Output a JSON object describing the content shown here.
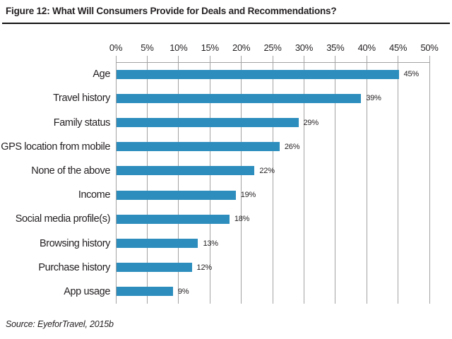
{
  "figure": {
    "title": "Figure 12: What Will Consumers Provide for Deals and Recommendations?",
    "source": "Source: EyeforTravel, 2015b"
  },
  "chart_data": {
    "type": "bar",
    "orientation": "horizontal",
    "title": "Figure 12: What Will Consumers Provide for Deals and Recommendations?",
    "xlabel": "",
    "ylabel": "",
    "categories": [
      "Age",
      "Travel history",
      "Family status",
      "GPS location from mobile",
      "None of the above",
      "Income",
      "Social media profile(s)",
      "Browsing history",
      "Purchase history",
      "App usage"
    ],
    "values": [
      45,
      39,
      29,
      26,
      22,
      19,
      18,
      13,
      12,
      9
    ],
    "value_labels": [
      "45%",
      "39%",
      "29%",
      "26%",
      "22%",
      "19%",
      "18%",
      "13%",
      "12%",
      "9%"
    ],
    "x_ticks": [
      "0%",
      "5%",
      "10%",
      "15%",
      "20%",
      "25%",
      "30%",
      "35%",
      "40%",
      "45%",
      "50%"
    ],
    "xlim": [
      0,
      50
    ],
    "tick_step": 5,
    "grid": true,
    "legend": false,
    "axis_position": "top",
    "bar_color": "#2D8EBE",
    "grid_color": "#a3a3a3",
    "text_color": "#231f20",
    "source": "Source: EyeforTravel, 2015b"
  }
}
